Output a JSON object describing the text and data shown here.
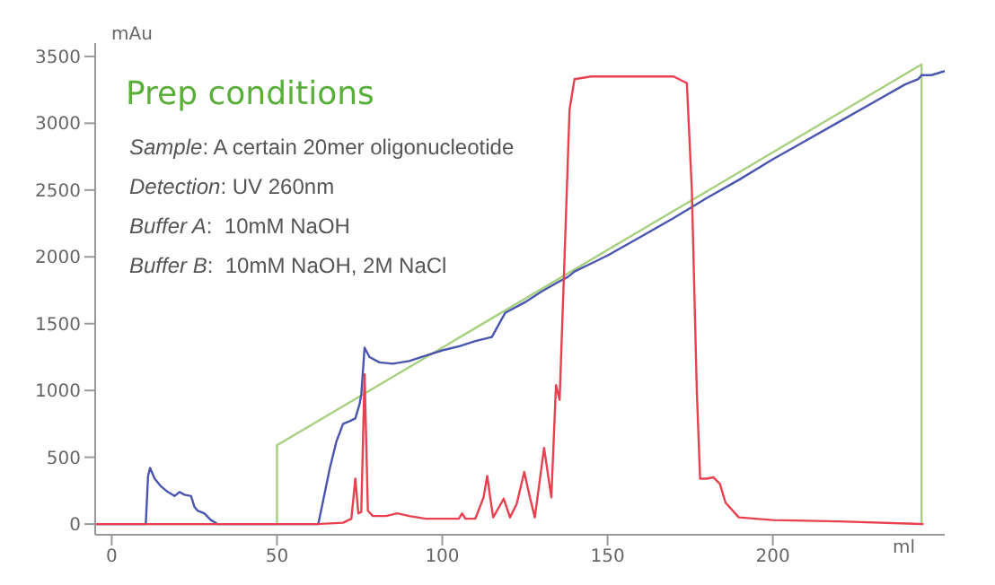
{
  "chart_data": {
    "type": "line",
    "title": "Prep conditions",
    "xlabel": "ml",
    "ylabel": "mAu",
    "annotations": [
      "Sample: A certain 20mer oligonucleotide",
      "Detection: UV 260nm",
      "Buffer A:  10mM NaOH",
      "Buffer B:  10mM NaOH, 2M NaCl"
    ],
    "xlim": [
      -5,
      252
    ],
    "xticks": [
      0,
      50,
      100,
      150,
      200
    ],
    "ylim": [
      -80,
      3600
    ],
    "yticks": [
      0,
      500,
      1000,
      1500,
      2000,
      2500,
      3000,
      3500
    ],
    "marker": "none",
    "line_style": "solid",
    "series": [
      {
        "color": "#a8d080",
        "x": [
          -5,
          50,
          50,
          245,
          245
        ],
        "values": [
          0,
          0,
          590,
          3440,
          0
        ]
      },
      {
        "color": "#4a55b0",
        "x": [
          -5,
          10.3,
          11,
          11.6,
          13,
          15,
          17,
          19,
          20.5,
          22,
          24,
          25,
          26,
          28,
          30,
          32,
          62.5,
          64,
          66,
          68,
          70,
          72,
          73.7,
          75,
          75.5,
          76.5,
          78,
          81,
          85,
          90,
          95,
          100,
          105,
          110,
          115,
          119,
          125,
          130,
          135,
          138,
          140,
          145,
          150,
          160,
          170,
          180,
          190,
          200,
          210,
          220,
          230,
          240,
          244,
          245,
          248,
          252
        ],
        "values": [
          0,
          0,
          360,
          420,
          340,
          280,
          240,
          210,
          240,
          220,
          210,
          130,
          100,
          80,
          30,
          0,
          0,
          180,
          420,
          620,
          750,
          770,
          790,
          900,
          970,
          1320,
          1250,
          1210,
          1200,
          1220,
          1260,
          1300,
          1330,
          1370,
          1400,
          1580,
          1660,
          1740,
          1810,
          1850,
          1890,
          1950,
          2010,
          2150,
          2290,
          2440,
          2580,
          2730,
          2870,
          3010,
          3150,
          3290,
          3330,
          3360,
          3360,
          3390
        ]
      },
      {
        "color": "#e8404f",
        "x": [
          -5,
          62,
          70,
          72.5,
          73.7,
          74.6,
          75.5,
          76.5,
          77.5,
          79,
          83,
          86.4,
          90,
          95,
          100,
          105,
          106,
          107,
          108,
          110,
          112.5,
          113.6,
          114.5,
          115.4,
          117,
          118.6,
          120.5,
          122.5,
          124.8,
          126.5,
          128,
          130.8,
          133,
          134.4,
          135.5,
          137,
          138.5,
          140,
          145,
          160,
          170,
          174,
          175.5,
          177,
          178,
          180,
          182,
          184,
          185.7,
          189.7,
          200,
          220,
          245.6
        ],
        "values": [
          0,
          0,
          10,
          40,
          340,
          80,
          90,
          1120,
          100,
          60,
          60,
          80,
          60,
          40,
          40,
          40,
          80,
          40,
          40,
          40,
          200,
          360,
          200,
          50,
          120,
          190,
          50,
          150,
          390,
          200,
          50,
          570,
          200,
          1040,
          930,
          2000,
          3100,
          3330,
          3350,
          3350,
          3350,
          3300,
          2500,
          1000,
          340,
          340,
          350,
          300,
          160,
          50,
          30,
          20,
          0
        ]
      }
    ]
  }
}
